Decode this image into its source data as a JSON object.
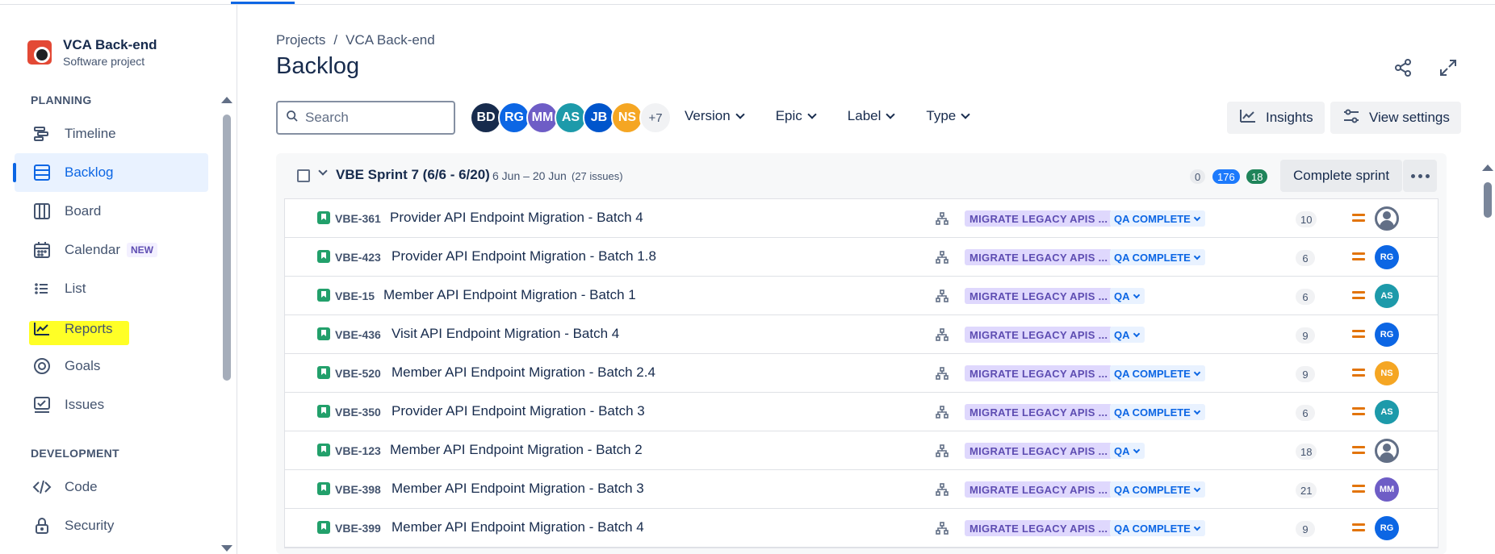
{
  "project": {
    "name": "VCA Back-end",
    "type": "Software project"
  },
  "sidebar": {
    "planning_label": "PLANNING",
    "development_label": "DEVELOPMENT",
    "items": [
      {
        "label": "Timeline",
        "icon": "timeline-icon"
      },
      {
        "label": "Backlog",
        "icon": "backlog-icon",
        "active": true
      },
      {
        "label": "Board",
        "icon": "board-icon"
      },
      {
        "label": "Calendar",
        "icon": "calendar-icon",
        "badge": "NEW"
      },
      {
        "label": "List",
        "icon": "list-icon"
      },
      {
        "label": "Reports",
        "icon": "reports-icon",
        "highlighted": true
      },
      {
        "label": "Goals",
        "icon": "goals-icon"
      },
      {
        "label": "Issues",
        "icon": "issues-icon"
      }
    ],
    "dev_items": [
      {
        "label": "Code",
        "icon": "code-icon"
      },
      {
        "label": "Security",
        "icon": "lock-icon"
      }
    ]
  },
  "breadcrumb": {
    "root": "Projects",
    "separator": "/",
    "current": "VCA Back-end"
  },
  "page": {
    "title": "Backlog"
  },
  "search": {
    "placeholder": "Search"
  },
  "avatars": [
    {
      "initials": "BD",
      "color": "#172b4d"
    },
    {
      "initials": "RG",
      "color": "#0c66e4"
    },
    {
      "initials": "MM",
      "color": "#6e5dc6"
    },
    {
      "initials": "AS",
      "color": "#1d9aaa"
    },
    {
      "initials": "JB",
      "color": "#0055cc"
    },
    {
      "initials": "NS",
      "color": "#f5a623"
    }
  ],
  "avatar_more": "+7",
  "filters": {
    "version": "Version",
    "epic": "Epic",
    "label": "Label",
    "type": "Type"
  },
  "toolbar": {
    "insights": "Insights",
    "view_settings": "View settings"
  },
  "sprint": {
    "name": "VBE Sprint 7 (6/6 - 6/20)",
    "dates": "6 Jun – 20 Jun",
    "issue_count": "(27 issues)",
    "counts": {
      "todo": "0",
      "in_progress": "176",
      "done": "18"
    },
    "complete_label": "Complete sprint"
  },
  "issues": [
    {
      "key": "VBE-361",
      "summary": "Provider API Endpoint Migration - Batch 4",
      "epic": "MIGRATE LEGACY APIS ...",
      "status": "QA COMPLETE",
      "points": "10",
      "assignee": "",
      "assignee_color": ""
    },
    {
      "key": "VBE-423",
      "summary": "Provider API Endpoint Migration - Batch 1.8",
      "epic": "MIGRATE LEGACY APIS ...",
      "status": "QA COMPLETE",
      "points": "6",
      "assignee": "RG",
      "assignee_color": "#0c66e4"
    },
    {
      "key": "VBE-15",
      "summary": "Member API Endpoint Migration - Batch 1",
      "epic": "MIGRATE LEGACY APIS ...",
      "status": "QA",
      "points": "6",
      "assignee": "AS",
      "assignee_color": "#1d9aaa"
    },
    {
      "key": "VBE-436",
      "summary": "Visit API Endpoint Migration - Batch 4",
      "epic": "MIGRATE LEGACY APIS ...",
      "status": "QA",
      "points": "9",
      "assignee": "RG",
      "assignee_color": "#0c66e4"
    },
    {
      "key": "VBE-520",
      "summary": "Member API Endpoint Migration - Batch 2.4",
      "epic": "MIGRATE LEGACY APIS ...",
      "status": "QA COMPLETE",
      "points": "9",
      "assignee": "NS",
      "assignee_color": "#f5a623"
    },
    {
      "key": "VBE-350",
      "summary": "Provider API Endpoint Migration - Batch 3",
      "epic": "MIGRATE LEGACY APIS ...",
      "status": "QA COMPLETE",
      "points": "6",
      "assignee": "AS",
      "assignee_color": "#1d9aaa"
    },
    {
      "key": "VBE-123",
      "summary": "Member API Endpoint Migration - Batch 2",
      "epic": "MIGRATE LEGACY APIS ...",
      "status": "QA",
      "points": "18",
      "assignee": "",
      "assignee_color": ""
    },
    {
      "key": "VBE-398",
      "summary": "Member API Endpoint Migration - Batch 3",
      "epic": "MIGRATE LEGACY APIS ...",
      "status": "QA COMPLETE",
      "points": "21",
      "assignee": "MM",
      "assignee_color": "#6e5dc6"
    },
    {
      "key": "VBE-399",
      "summary": "Member API Endpoint Migration - Batch 4",
      "epic": "MIGRATE LEGACY APIS ...",
      "status": "QA COMPLETE",
      "points": "9",
      "assignee": "RG",
      "assignee_color": "#0c66e4"
    }
  ],
  "colors": {
    "accent": "#0c66e4",
    "highlight": "#ffff1a",
    "epic_bg": "#dfd8fd",
    "story_green": "#22a06b",
    "priority_medium": "#e2740a"
  }
}
